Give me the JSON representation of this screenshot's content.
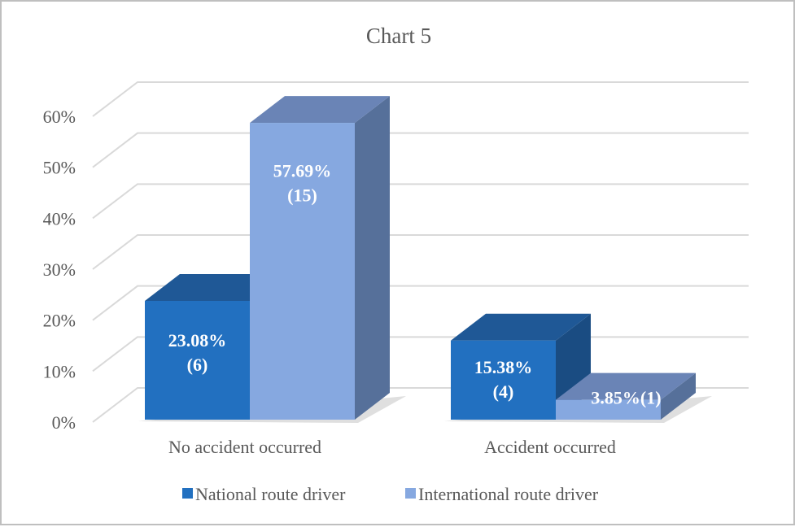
{
  "chart_data": {
    "type": "bar",
    "subtype": "3d-clustered-column",
    "title": "Chart 5",
    "xlabel": "",
    "ylabel": "",
    "categories": [
      "No accident occurred",
      "Accident occurred"
    ],
    "series": [
      {
        "name": "National route driver",
        "values": [
          23.08,
          15.38
        ],
        "counts": [
          6,
          4
        ],
        "labels": [
          "23.08%\n(6)",
          "15.38%\n(4)"
        ],
        "color": "#2270C0"
      },
      {
        "name": "International route driver",
        "values": [
          57.69,
          3.85
        ],
        "counts": [
          15,
          1
        ],
        "labels": [
          "57.69%\n(15)",
          "3.85%(1)"
        ],
        "color": "#86A8E0"
      }
    ],
    "yticks": [
      "0%",
      "10%",
      "20%",
      "30%",
      "40%",
      "50%",
      "60%"
    ],
    "ylim": [
      0,
      60
    ],
    "grid": true,
    "legend_position": "bottom"
  },
  "colors": {
    "national_front": "#2270C0",
    "national_top": "#1F5896",
    "national_side": "#1A4C82",
    "international_front": "#86A8E0",
    "international_top": "#6A84B6",
    "international_side": "#56709A",
    "grid": "#d9d9d9",
    "text": "#595959"
  }
}
